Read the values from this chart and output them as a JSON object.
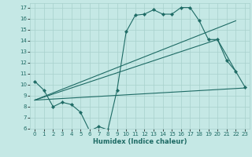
{
  "xlabel": "Humidex (Indice chaleur)",
  "bg_color": "#c5e8e5",
  "grid_color": "#a8d0cc",
  "line_color": "#1e6b65",
  "xlim": [
    -0.5,
    23.5
  ],
  "ylim": [
    6,
    17.4
  ],
  "xticks": [
    0,
    1,
    2,
    3,
    4,
    5,
    6,
    7,
    8,
    9,
    10,
    11,
    12,
    13,
    14,
    15,
    16,
    17,
    18,
    19,
    20,
    21,
    22,
    23
  ],
  "yticks": [
    6,
    7,
    8,
    9,
    10,
    11,
    12,
    13,
    14,
    15,
    16,
    17
  ],
  "line1_x": [
    0,
    1,
    2,
    3,
    4,
    5,
    6,
    7,
    8,
    9,
    10,
    11,
    12,
    13,
    14,
    15,
    16,
    17,
    18,
    19,
    20,
    21,
    22,
    23
  ],
  "line1_y": [
    10.3,
    9.5,
    8.0,
    8.4,
    8.2,
    7.5,
    5.8,
    6.2,
    5.9,
    9.5,
    14.8,
    16.3,
    16.4,
    16.8,
    16.4,
    16.4,
    17.0,
    17.0,
    15.8,
    14.1,
    14.1,
    12.2,
    11.2,
    9.8
  ],
  "line2_x": [
    0,
    23
  ],
  "line2_y": [
    8.6,
    9.7
  ],
  "line3_x": [
    0,
    22
  ],
  "line3_y": [
    8.6,
    15.8
  ],
  "line4_x": [
    0,
    20,
    22
  ],
  "line4_y": [
    8.6,
    14.1,
    11.2
  ]
}
